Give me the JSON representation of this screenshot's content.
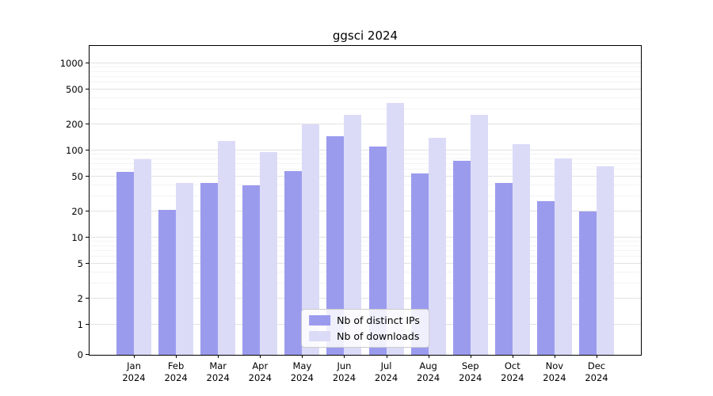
{
  "chart_data": {
    "type": "bar",
    "title": "ggsci 2024",
    "scale": "symlog",
    "grid": true,
    "legend_position": "bottom-center",
    "year": "2024",
    "categories": [
      "Jan",
      "Feb",
      "Mar",
      "Apr",
      "May",
      "Jun",
      "Jul",
      "Aug",
      "Sep",
      "Oct",
      "Nov",
      "Dec"
    ],
    "yticks": [
      0,
      1,
      2,
      5,
      10,
      20,
      50,
      100,
      200,
      500,
      1000
    ],
    "ylim": [
      0,
      1300
    ],
    "series": [
      {
        "name": "Nb of distinct IPs",
        "color": "#9b9bee",
        "values": [
          57,
          21,
          42,
          40,
          58,
          145,
          110,
          54,
          76,
          42,
          26,
          20
        ]
      },
      {
        "name": "Nb of downloads",
        "color": "#dbdbf8",
        "values": [
          80,
          42,
          130,
          97,
          200,
          255,
          350,
          140,
          255,
          118,
          82,
          66
        ]
      }
    ]
  }
}
